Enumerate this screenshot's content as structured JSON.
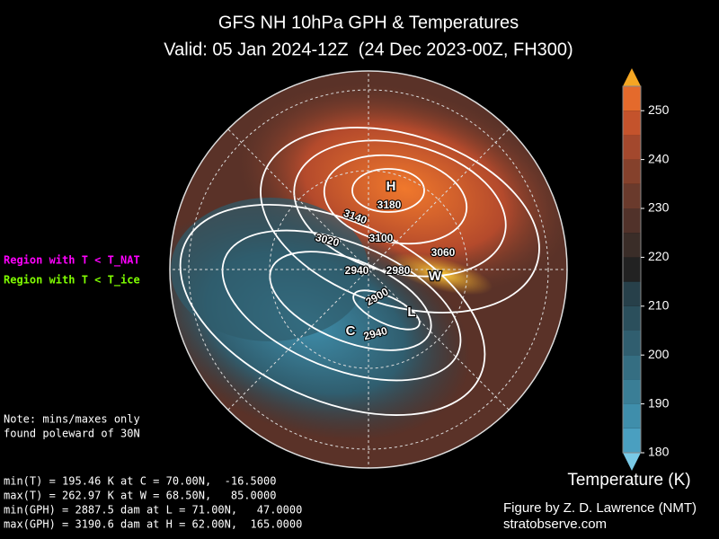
{
  "header": {
    "title": "GFS NH 10hPa GPH & Temperatures",
    "subtitle": "Valid: 05 Jan 2024-12Z  (24 Dec 2023-00Z, FH300)"
  },
  "legend": [
    {
      "label": "Region with T < T_NAT",
      "color": "#ff00ff"
    },
    {
      "label": "Region with T < T_ice",
      "color": "#7fff00"
    }
  ],
  "extrema_markers": [
    "H",
    "W",
    "L",
    "C"
  ],
  "contour_labels": [
    3180,
    3140,
    3100,
    3060,
    3020,
    2980,
    2940,
    2900,
    2940
  ],
  "colorbar": {
    "label": "Temperature (K)",
    "lim": [
      180,
      255
    ],
    "ticks": [
      180,
      190,
      200,
      210,
      220,
      230,
      240,
      250
    ],
    "colors": [
      "#4a9fc0",
      "#3f8eab",
      "#3a7e96",
      "#356e82",
      "#305e6f",
      "#2b4f5c",
      "#27404a",
      "#222",
      "#3a2d28",
      "#51322a",
      "#6a3a2c",
      "#85412c",
      "#a3482d",
      "#c4532c",
      "#e46a2c"
    ],
    "over_color": "#f5a623",
    "under_color": "#79c9e6"
  },
  "note": [
    "Note: mins/maxes only",
    "found poleward of 30N"
  ],
  "stats": [
    "min(T) = 195.46 K at C = 70.00N,  -16.5000",
    "max(T) = 262.97 K at W = 68.50N,   85.0000",
    "min(GPH) = 2887.5 dam at L = 71.00N,   47.0000",
    "max(GPH) = 3190.6 dam at H = 62.00N,  165.0000"
  ],
  "credit": [
    "Figure by Z. D. Lawrence (NMT)",
    "stratobserve.com"
  ]
}
